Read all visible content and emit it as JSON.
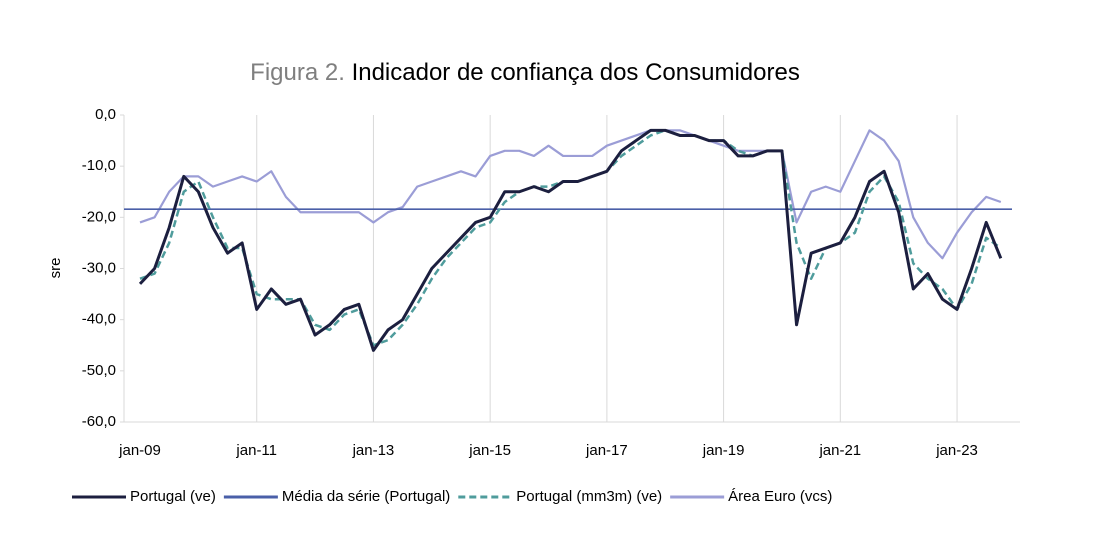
{
  "chart_data": {
    "type": "line",
    "title_prefix": "Figura 2.",
    "title": "Indicador de confiança dos Consumidores",
    "y_label": "sre",
    "categories": [
      "jan-09",
      null,
      null,
      null,
      null,
      null,
      null,
      null,
      "jan-11",
      null,
      null,
      null,
      null,
      null,
      null,
      null,
      "jan-13",
      null,
      null,
      null,
      null,
      null,
      null,
      null,
      "jan-15",
      null,
      null,
      null,
      null,
      null,
      null,
      null,
      "jan-17",
      null,
      null,
      null,
      null,
      null,
      null,
      null,
      "jan-19",
      null,
      null,
      null,
      null,
      null,
      null,
      null,
      "jan-21",
      null,
      null,
      null,
      null,
      null,
      null,
      null,
      "jan-23",
      null,
      null,
      null
    ],
    "series": [
      {
        "name": "Portugal (ve)",
        "color": "#1c1f3f",
        "style": "solid",
        "values": [
          -33,
          -30,
          -22,
          -12,
          -15,
          -22,
          -27,
          -25,
          -38,
          -34,
          -37,
          -36,
          -43,
          -41,
          -38,
          -37,
          -46,
          -42,
          -40,
          -35,
          -30,
          -27,
          -24,
          -21,
          -20,
          -15,
          -15,
          -14,
          -15,
          -13,
          -13,
          -12,
          -11,
          -7,
          -5,
          -3,
          -3,
          -4,
          -4,
          -5,
          -5,
          -8,
          -8,
          -7,
          -7,
          -41,
          -27,
          -26,
          -25,
          -20,
          -13,
          -11,
          -19,
          -34,
          -31,
          -36,
          -38,
          -30,
          -21,
          -28
        ]
      },
      {
        "name": "Média da série (Portugal)",
        "color": "#4a5fa8",
        "style": "hline",
        "value": -18.4
      },
      {
        "name": "Portugal (mm3m) (ve)",
        "color": "#4f9c9c",
        "style": "dashed",
        "values": [
          -32,
          -31,
          -25,
          -15,
          -13,
          -20,
          -26,
          -26,
          -35,
          -36,
          -36,
          -36,
          -41,
          -42,
          -39,
          -38,
          -45,
          -44,
          -41,
          -37,
          -32,
          -28,
          -25,
          -22,
          -21,
          -17,
          -15,
          -14,
          -14,
          -13,
          -13,
          -12,
          -11,
          -8,
          -6,
          -4,
          -3,
          -4,
          -4,
          -5,
          -5,
          -7,
          -8,
          -7,
          -7,
          -25,
          -32,
          -26,
          -25,
          -23,
          -15,
          -12,
          -17,
          -29,
          -32,
          -34,
          -38,
          -33,
          -24,
          -26
        ]
      },
      {
        "name": "Área Euro (vcs)",
        "color": "#9b9dd6",
        "style": "solid",
        "values": [
          -21,
          -20,
          -15,
          -12,
          -12,
          -14,
          -13,
          -12,
          -13,
          -11,
          -16,
          -19,
          -19,
          -19,
          -19,
          -19,
          -21,
          -19,
          -18,
          -14,
          -13,
          -12,
          -11,
          -12,
          -8,
          -7,
          -7,
          -8,
          -6,
          -8,
          -8,
          -8,
          -6,
          -5,
          -4,
          -3,
          -3,
          -3,
          -4,
          -5,
          -6,
          -7,
          -7,
          -7,
          -7,
          -21,
          -15,
          -14,
          -15,
          -9,
          -3,
          -5,
          -9,
          -20,
          -25,
          -28,
          -23,
          -19,
          -16,
          -17
        ]
      }
    ],
    "ylim": [
      -60,
      0
    ],
    "yticks": [
      {
        "value": -60,
        "label": "-60,0"
      },
      {
        "value": -50,
        "label": "-50,0"
      },
      {
        "value": -40,
        "label": "-40,0"
      },
      {
        "value": -30,
        "label": "-30,0"
      },
      {
        "value": -20,
        "label": "-20,0"
      },
      {
        "value": -10,
        "label": "-10,0"
      },
      {
        "value": 0,
        "label": "0,0"
      }
    ],
    "grid": true
  }
}
